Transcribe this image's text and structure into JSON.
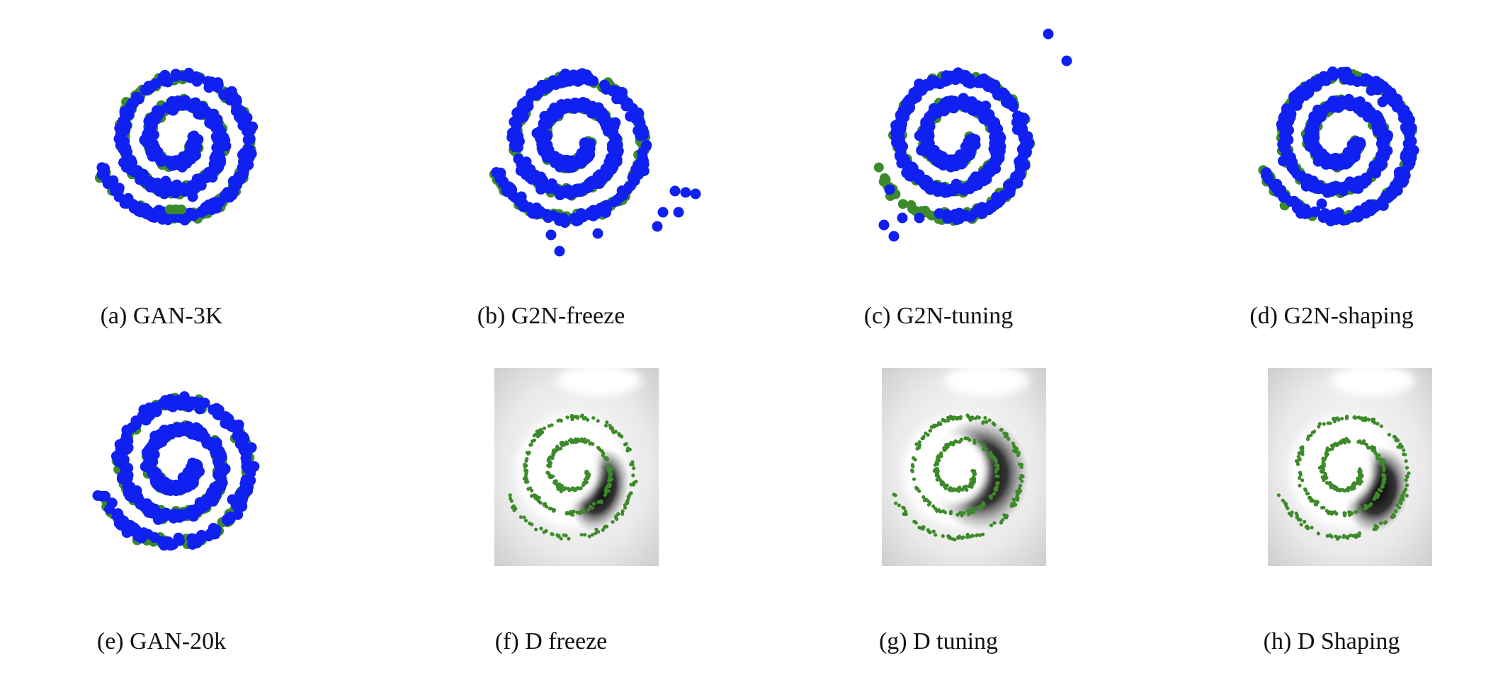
{
  "colors": {
    "real": "#3d8a2a",
    "generated": "#1020f0"
  },
  "chart_data": [
    {
      "type": "scatter",
      "caption": "(a) GAN-3K",
      "series": [
        {
          "color": "green"
        },
        {
          "color": "blue"
        }
      ]
    },
    {
      "type": "scatter",
      "caption": "(b) G2N-freeze",
      "series": [
        {
          "color": "green"
        },
        {
          "color": "blue"
        }
      ]
    },
    {
      "type": "scatter",
      "caption": "(c) G2N-tuning",
      "series": [
        {
          "color": "green"
        },
        {
          "color": "blue"
        }
      ]
    },
    {
      "type": "scatter",
      "caption": "(d) G2N-shaping",
      "series": [
        {
          "color": "green"
        },
        {
          "color": "blue"
        }
      ]
    },
    {
      "type": "scatter",
      "caption": "(e) GAN-20k",
      "series": [
        {
          "color": "green"
        },
        {
          "color": "blue"
        }
      ]
    },
    {
      "type": "heatmap",
      "caption": "(f) D freeze",
      "series": [
        {
          "color": "green"
        }
      ]
    },
    {
      "type": "heatmap",
      "caption": "(g) D tuning",
      "series": [
        {
          "color": "green"
        }
      ]
    },
    {
      "type": "heatmap",
      "caption": "(h) D Shaping",
      "series": [
        {
          "color": "green"
        }
      ]
    }
  ]
}
